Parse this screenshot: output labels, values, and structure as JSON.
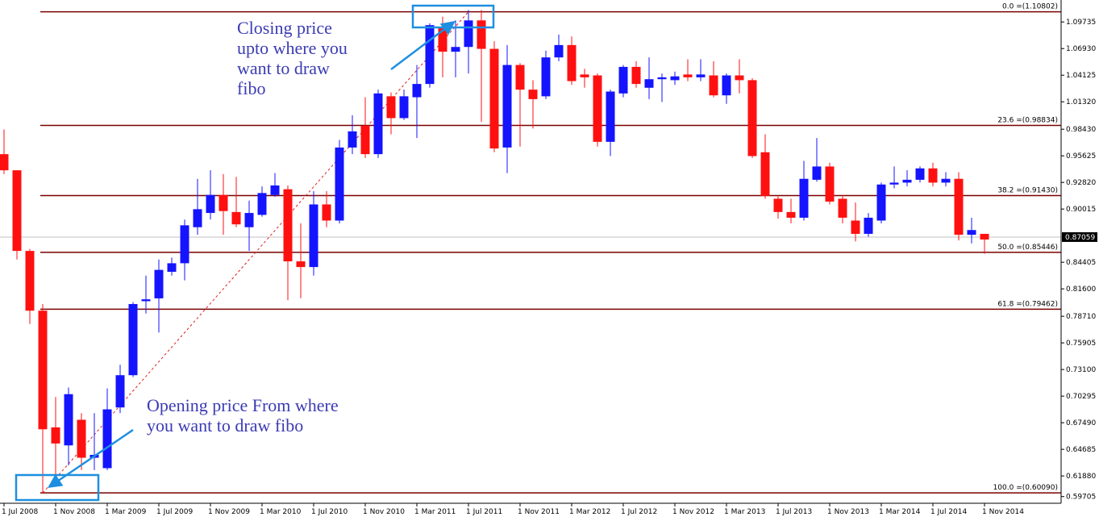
{
  "chart_data": {
    "type": "candlestick",
    "up_color": "#1414ff",
    "down_color": "#ff1010",
    "fib_color": "#7a0000",
    "categories": [
      "1 Jul 2008",
      null,
      null,
      null,
      "1 Nov 2008",
      null,
      null,
      null,
      "1 Mar 2009",
      null,
      null,
      null,
      "1 Jul 2009",
      null,
      null,
      null,
      "1 Nov 2009",
      null,
      null,
      null,
      "1 Mar 2010",
      null,
      null,
      null,
      "1 Jul 2010",
      null,
      null,
      null,
      "1 Nov 2010",
      null,
      null,
      null,
      "1 Mar 2011",
      null,
      null,
      null,
      "1 Jul 2011",
      null,
      null,
      null,
      "1 Nov 2011",
      null,
      null,
      null,
      "1 Mar 2012",
      null,
      null,
      null,
      "1 Jul 2012",
      null,
      null,
      null,
      "1 Nov 2012",
      null,
      null,
      null,
      "1 Mar 2013",
      null,
      null,
      null,
      "1 Jul 2013",
      null,
      null,
      null,
      "1 Nov 2013",
      null,
      null,
      null,
      "1 Mar 2014",
      null,
      null,
      null,
      "1 Jul 2014",
      null,
      null,
      null,
      "1 Nov 2014"
    ],
    "open": [
      0.958,
      0.941,
      0.856,
      0.793,
      0.67,
      0.651,
      0.678,
      0.638,
      0.627,
      0.691,
      0.725,
      0.803,
      0.806,
      0.834,
      0.843,
      0.881,
      0.896,
      0.915,
      0.897,
      0.881,
      0.894,
      0.915,
      0.921,
      0.845,
      0.839,
      0.905,
      0.888,
      0.965,
      0.988,
      0.958,
      1.019,
      0.996,
      1.018,
      1.032,
      1.092,
      1.066,
      1.071,
      1.099,
      1.069,
      0.965,
      1.052,
      1.026,
      1.019,
      1.06,
      1.073,
      1.042,
      1.041,
      0.971,
      1.022,
      1.05,
      1.028,
      1.037,
      1.036,
      1.042,
      1.039,
      1.041,
      1.02,
      1.041,
      1.036,
      0.96,
      0.911,
      0.897,
      0.891,
      0.931,
      0.945,
      0.911,
      0.888,
      0.874,
      0.888,
      0.926,
      0.928,
      0.931,
      0.943,
      0.928,
      0.932,
      0.873,
      0.874
    ],
    "high": [
      0.984,
      0.941,
      0.858,
      0.8,
      0.702,
      0.712,
      0.685,
      0.685,
      0.711,
      0.736,
      0.802,
      0.83,
      0.847,
      0.849,
      0.889,
      0.932,
      0.941,
      0.937,
      0.934,
      0.909,
      0.924,
      0.938,
      0.925,
      0.885,
      0.919,
      0.919,
      0.973,
      0.999,
      1.018,
      1.026,
      1.023,
      1.026,
      1.052,
      1.096,
      1.103,
      1.099,
      1.11,
      1.11,
      1.077,
      1.073,
      1.054,
      1.036,
      1.067,
      1.084,
      1.082,
      1.048,
      1.043,
      1.026,
      1.052,
      1.056,
      1.06,
      1.043,
      1.045,
      1.058,
      1.058,
      1.056,
      1.043,
      1.058,
      1.038,
      0.979,
      0.915,
      0.911,
      0.951,
      0.975,
      0.949,
      0.915,
      0.907,
      0.896,
      0.928,
      0.945,
      0.941,
      0.945,
      0.949,
      0.939,
      0.939,
      0.891,
      0.874
    ],
    "low": [
      0.937,
      0.847,
      0.779,
      0.6009,
      0.617,
      0.63,
      0.625,
      0.625,
      0.625,
      0.685,
      0.723,
      0.79,
      0.77,
      0.83,
      0.825,
      0.873,
      0.889,
      0.873,
      0.881,
      0.856,
      0.892,
      0.913,
      0.804,
      0.806,
      0.83,
      0.881,
      0.885,
      0.958,
      0.954,
      0.954,
      0.979,
      0.994,
      0.975,
      1.028,
      1.039,
      1.039,
      1.043,
      0.992,
      0.96,
      0.938,
      0.966,
      0.985,
      1.016,
      1.056,
      1.031,
      1.028,
      0.966,
      0.956,
      1.018,
      1.028,
      1.016,
      1.013,
      1.031,
      1.035,
      1.035,
      1.018,
      1.011,
      1.022,
      0.954,
      0.911,
      0.89,
      0.885,
      0.888,
      0.929,
      0.905,
      0.885,
      0.866,
      0.871,
      0.885,
      0.922,
      0.924,
      0.928,
      0.924,
      0.924,
      0.867,
      0.864,
      0.853
    ],
    "close": [
      0.941,
      0.856,
      0.793,
      0.668,
      0.653,
      0.705,
      0.638,
      0.641,
      0.689,
      0.725,
      0.8,
      0.805,
      0.836,
      0.843,
      0.883,
      0.9,
      0.915,
      0.898,
      0.884,
      0.896,
      0.917,
      0.925,
      0.845,
      0.839,
      0.905,
      0.888,
      0.965,
      0.982,
      0.958,
      1.022,
      0.996,
      1.019,
      1.032,
      1.094,
      1.066,
      1.071,
      1.099,
      1.069,
      0.964,
      1.052,
      1.026,
      1.016,
      1.06,
      1.073,
      1.035,
      1.039,
      0.971,
      1.024,
      1.05,
      1.032,
      1.037,
      1.039,
      1.04,
      1.039,
      1.042,
      1.02,
      1.041,
      1.036,
      0.956,
      0.914,
      0.897,
      0.891,
      0.932,
      0.945,
      0.908,
      0.891,
      0.874,
      0.891,
      0.926,
      0.928,
      0.931,
      0.943,
      0.928,
      0.932,
      0.873,
      0.878,
      0.868
    ],
    "ylim": [
      0.59,
      1.1205
    ],
    "yticks": [
      1.09735,
      {
        "value": 1.0693,
        "label": "1.06930"
      },
      1.04125,
      {
        "value": 1.0132,
        "label": "1.01320"
      },
      {
        "value": 0.9843,
        "label": "0.98430"
      },
      0.95625,
      {
        "value": 0.9282,
        "label": "0.92820"
      },
      0.90015,
      0.84405,
      {
        "value": 0.816,
        "label": "0.81600"
      },
      {
        "value": 0.7871,
        "label": "0.78710"
      },
      0.75905,
      {
        "value": 0.731,
        "label": "0.73100"
      },
      0.70295,
      {
        "value": 0.6749,
        "label": "0.67490"
      },
      0.64685,
      {
        "value": 0.6188,
        "label": "0.61880"
      },
      0.59705
    ],
    "current_price": 0.87059,
    "fib_levels": [
      {
        "value": 1.10802,
        "label": "0.0 =(1.10802)"
      },
      {
        "value": 0.98834,
        "label": "23.6 =(0.98834)"
      },
      {
        "value": 0.9143,
        "label": "38.2 =(0.91430)"
      },
      {
        "value": 0.85446,
        "label": "50.0 =(0.85446)"
      },
      {
        "value": 0.79462,
        "label": "61.8 =(0.79462)"
      },
      {
        "value": 0.6009,
        "label": "100.0 =(0.60090)"
      }
    ],
    "annotations": [
      {
        "lines": [
          "Closing price",
          "upto where you",
          "want to draw",
          "fibo"
        ]
      },
      {
        "lines": [
          "Opening price From where",
          "you want to draw fibo"
        ]
      }
    ]
  }
}
